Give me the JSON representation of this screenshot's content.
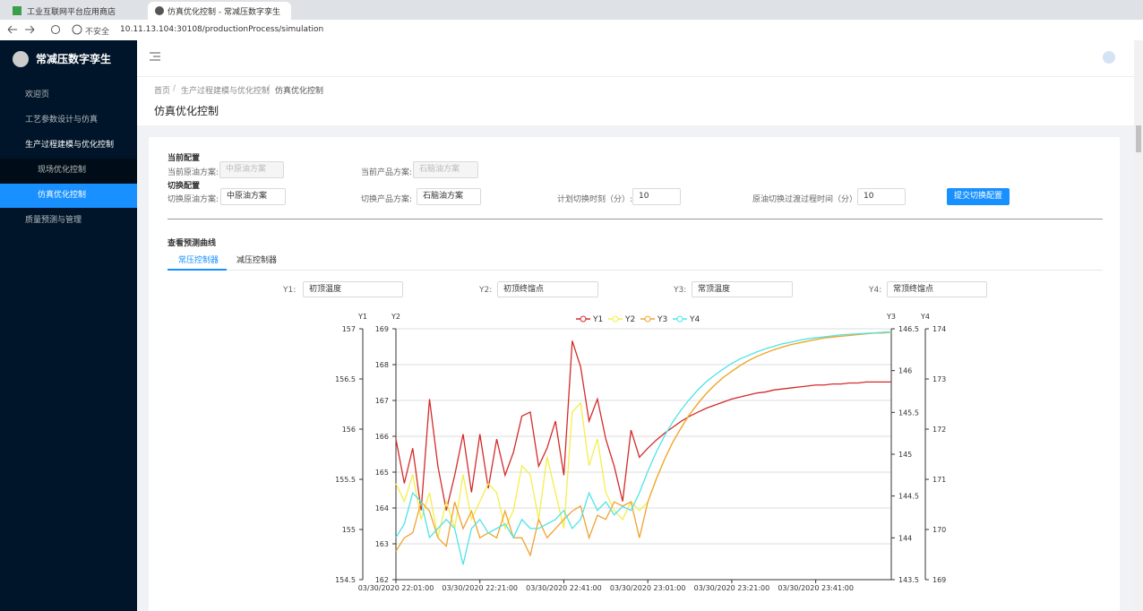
{
  "browser": {
    "tabs": [
      "工业互联网平台应用商店",
      "仿真优化控制 - 常减压数字孪生"
    ],
    "security": "不安全",
    "url": "10.11.13.104:30108/productionProcess/simulation"
  },
  "sidebar": {
    "brand": "常减压数字孪生",
    "menu": [
      "欢迎页",
      "工艺参数设计与仿真",
      "生产过程建模与优化控制",
      "现场优化控制",
      "仿真优化控制",
      "质量预测与管理"
    ]
  },
  "breadcrumb": {
    "items": [
      "首页",
      "生产过程建模与优化控制",
      "仿真优化控制"
    ],
    "separator": "/"
  },
  "page_title": "仿真优化控制",
  "form": {
    "current_title": "当前配置",
    "current_crude_label": "当前原油方案:",
    "current_crude": "中原油方案",
    "current_product_label": "当前产品方案:",
    "current_product": "石脑油方案",
    "switch_title": "切换配置",
    "switch_crude_label": "切换原油方案:",
    "switch_crude": "中原油方案",
    "switch_product_label": "切换产品方案:",
    "switch_product": "石脑油方案",
    "switch_time_label": "计划切换时刻（分）:",
    "switch_time": "10",
    "transition_label": "原油切换过渡过程时间（分）:",
    "transition": "10",
    "submit": "提交切换配置"
  },
  "curves": {
    "title": "查看预测曲线",
    "tabs": [
      "常压控制器",
      "减压控制器"
    ],
    "selects": [
      {
        "label": "Y1:",
        "value": "初顶温度"
      },
      {
        "label": "Y2:",
        "value": "初顶终馏点"
      },
      {
        "label": "Y3:",
        "value": "常顶温度"
      },
      {
        "label": "Y4:",
        "value": "常顶终馏点"
      }
    ]
  },
  "chart_data": {
    "type": "line",
    "categories": [
      "03/30/2020 22:01:00",
      null,
      null,
      null,
      null,
      null,
      null,
      null,
      null,
      null,
      "03/30/2020 22:21:00",
      null,
      null,
      null,
      null,
      null,
      null,
      null,
      null,
      null,
      "03/30/2020 22:41:00",
      null,
      null,
      null,
      null,
      null,
      null,
      null,
      null,
      null,
      "03/30/2020 23:01:00",
      null,
      null,
      null,
      null,
      null,
      null,
      null,
      null,
      null,
      "03/30/2020 23:21:00",
      null,
      null,
      null,
      null,
      null,
      null,
      null,
      null,
      null,
      "03/30/2020 23:41:00",
      null,
      null,
      null,
      null,
      null,
      null,
      null,
      null,
      null
    ],
    "ylabel": "Y1",
    "ylim": [
      154.5,
      157
    ],
    "yticks": [
      154.5,
      155,
      155.5,
      156,
      156.5,
      157
    ],
    "y2label": "Y2",
    "y2lim": [
      162,
      169
    ],
    "y2ticks": [
      162,
      163,
      164,
      165,
      166,
      167,
      168,
      169
    ],
    "y3label": "Y3",
    "y3lim": [
      143.5,
      146.5
    ],
    "y3ticks": [
      143.5,
      144,
      144.5,
      145,
      145.5,
      146,
      146.5
    ],
    "y4label": "Y4",
    "y4lim": [
      169,
      174
    ],
    "y4ticks": [
      169,
      170,
      171,
      172,
      173,
      174
    ],
    "grid": true,
    "series": [
      {
        "name": "Y1",
        "color": "#d42a2a",
        "axis": "y",
        "values": [
          155.9,
          155.46,
          155.81,
          155.19,
          156.3,
          155.63,
          155.19,
          155.54,
          155.95,
          155.37,
          155.95,
          155.41,
          155.9,
          155.54,
          155.77,
          156.13,
          156.17,
          155.63,
          155.81,
          156.08,
          155.54,
          156.88,
          156.62,
          156.08,
          156.3,
          155.9,
          155.63,
          155.28,
          155.99,
          155.72,
          155.81,
          155.89,
          155.96,
          156.02,
          156.08,
          156.13,
          156.17,
          156.21,
          156.24,
          156.27,
          156.3,
          156.32,
          156.34,
          156.36,
          156.37,
          156.39,
          156.4,
          156.41,
          156.42,
          156.43,
          156.44,
          156.44,
          156.45,
          156.45,
          156.46,
          156.46,
          156.47,
          156.47,
          156.47,
          156.47
        ]
      },
      {
        "name": "Y2",
        "color": "#f4ee4c",
        "axis": "y2",
        "values": [
          164.68,
          164.18,
          164.93,
          163.68,
          164.43,
          163.18,
          164.18,
          163.43,
          164.93,
          163.68,
          164.18,
          164.68,
          164.43,
          163.43,
          163.93,
          165.18,
          164.93,
          163.68,
          165.43,
          164.43,
          163.43,
          166.68,
          166.93,
          165.18,
          165.93,
          164.43,
          163.93,
          163.68,
          164.18,
          163.93,
          164.16,
          164.81,
          165.36,
          165.84,
          166.26,
          166.62,
          166.93,
          167.2,
          167.44,
          167.64,
          167.82,
          167.98,
          168.11,
          168.23,
          168.33,
          168.41,
          168.49,
          168.55,
          168.61,
          168.66,
          168.7,
          168.74,
          168.77,
          168.8,
          168.82,
          168.84,
          168.86,
          168.88,
          168.89,
          168.9
        ]
      },
      {
        "name": "Y3",
        "color": "#f0a232",
        "axis": "y3",
        "values": [
          143.84,
          144.0,
          144.06,
          144.43,
          144.32,
          144.0,
          143.9,
          144.43,
          144.11,
          144.32,
          144.0,
          144.06,
          144.0,
          144.32,
          144.0,
          144.0,
          143.79,
          144.22,
          144.0,
          144.11,
          144.22,
          144.32,
          144.38,
          144.0,
          144.27,
          144.22,
          144.43,
          144.38,
          144.43,
          144.0,
          144.43,
          144.7,
          144.94,
          145.15,
          145.32,
          145.48,
          145.61,
          145.73,
          145.83,
          145.92,
          145.99,
          146.06,
          146.12,
          146.17,
          146.21,
          146.25,
          146.28,
          146.31,
          146.33,
          146.35,
          146.37,
          146.39,
          146.4,
          146.41,
          146.42,
          146.43,
          146.44,
          146.45,
          146.45,
          146.46
        ]
      },
      {
        "name": "Y4",
        "color": "#4fe3e8",
        "axis": "y4",
        "values": [
          169.84,
          170.11,
          170.73,
          170.55,
          169.84,
          170.02,
          170.2,
          170.02,
          169.3,
          170.02,
          170.2,
          169.93,
          170.02,
          170.11,
          169.84,
          170.2,
          170.02,
          170.02,
          170.11,
          170.2,
          170.38,
          170.02,
          170.2,
          170.73,
          170.38,
          170.55,
          170.29,
          170.46,
          170.38,
          170.73,
          171.16,
          171.54,
          171.87,
          172.15,
          172.39,
          172.6,
          172.79,
          172.95,
          173.08,
          173.2,
          173.31,
          173.4,
          173.47,
          173.54,
          173.6,
          173.65,
          173.7,
          173.73,
          173.77,
          173.8,
          173.82,
          173.84,
          173.86,
          173.88,
          173.89,
          173.9,
          173.91,
          173.92,
          173.93,
          173.94
        ]
      }
    ]
  }
}
